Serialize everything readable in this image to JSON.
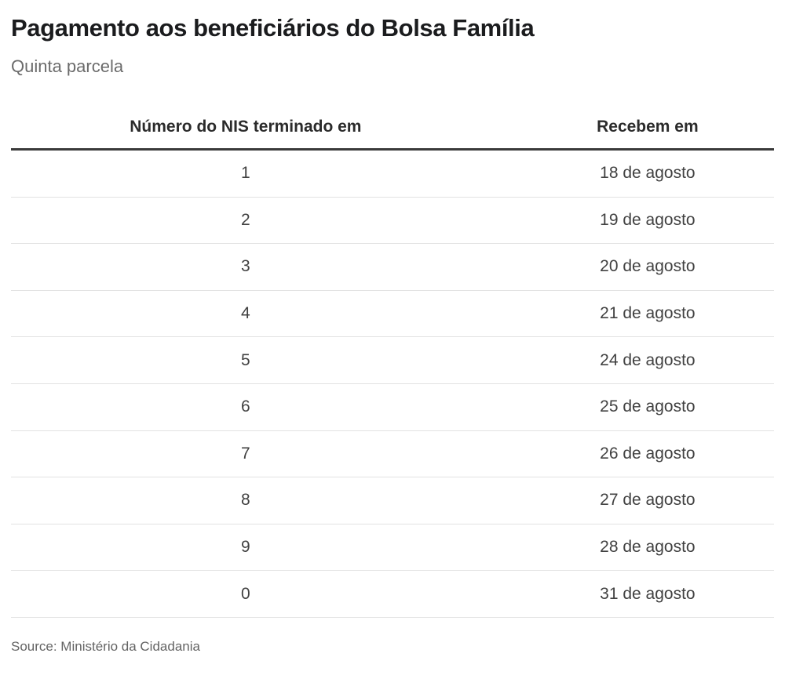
{
  "chart_data": {
    "type": "table",
    "title": "Pagamento aos beneficiários do Bolsa Família",
    "subtitle": "Quinta parcela",
    "columns": [
      "Número do NIS terminado em",
      "Recebem em"
    ],
    "rows": [
      {
        "nis": "1",
        "date": "18 de agosto"
      },
      {
        "nis": "2",
        "date": "19 de agosto"
      },
      {
        "nis": "3",
        "date": "20 de agosto"
      },
      {
        "nis": "4",
        "date": "21 de agosto"
      },
      {
        "nis": "5",
        "date": "24 de agosto"
      },
      {
        "nis": "6",
        "date": "25 de agosto"
      },
      {
        "nis": "7",
        "date": "26 de agosto"
      },
      {
        "nis": "8",
        "date": "27 de agosto"
      },
      {
        "nis": "9",
        "date": "28 de agosto"
      },
      {
        "nis": "0",
        "date": "31 de agosto"
      }
    ],
    "source": "Source: Ministério da Cidadania",
    "layout": {
      "grid": "off",
      "legend": "none"
    }
  },
  "colors": {
    "background": "#ffffff",
    "title_text": "#1b1c1e",
    "subtitle_text": "#6b6b6b",
    "header_text": "#2b2b2b",
    "row_text": "#414141",
    "heavy_rule": "#3a3a3a",
    "light_rule": "#e2e2e2",
    "source_text": "#646464"
  }
}
